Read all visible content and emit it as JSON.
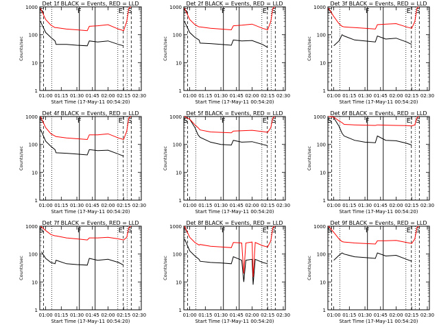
{
  "window": {
    "title": ""
  },
  "shared": {
    "xlabel": "Start Time (17-May-11 00:54:20)",
    "ylabel": "Counts/sec",
    "xticks": [
      "01:00",
      "01:15",
      "01:30",
      "01:45",
      "02:00",
      "02:15",
      "02:30"
    ],
    "yticks": [
      "1",
      "10",
      "100",
      "1000"
    ],
    "series_colors": {
      "events": "#000000",
      "lld": "#ff0000"
    },
    "markers": [
      {
        "label": "S",
        "t": "00:56"
      },
      {
        "label": "F",
        "t": "01:41"
      },
      {
        "label": "E",
        "t": "02:16"
      },
      {
        "label": "S",
        "t": "02:21"
      }
    ]
  },
  "chart_data": [
    {
      "type": "line",
      "title": "Det 1f BLACK = Events, RED = LLD",
      "xlim": [
        "00:54:20",
        "02:32"
      ],
      "ylim": [
        1,
        1000
      ],
      "yscale": "log",
      "series": [
        {
          "color": "#000000",
          "x": [
            "00:55",
            "01:00",
            "01:05",
            "01:09",
            "01:10",
            "01:20",
            "01:30",
            "01:40",
            "01:42",
            "01:50",
            "02:00",
            "02:10",
            "02:15"
          ],
          "y": [
            300,
            120,
            80,
            60,
            45,
            45,
            42,
            40,
            60,
            55,
            60,
            45,
            40
          ]
        },
        {
          "color": "#ff0000",
          "x": [
            "00:55",
            "01:00",
            "01:05",
            "01:09",
            "01:10",
            "01:20",
            "01:30",
            "01:40",
            "01:42",
            "01:50",
            "02:00",
            "02:10",
            "02:15",
            "02:18",
            "02:20",
            "02:22"
          ],
          "y": [
            900,
            350,
            220,
            180,
            180,
            160,
            150,
            140,
            200,
            210,
            230,
            160,
            140,
            300,
            900,
            1000
          ]
        }
      ]
    },
    {
      "type": "line",
      "title": "Det 2f BLACK = Events, RED = LLD",
      "xlim": [
        "00:54:20",
        "02:32"
      ],
      "ylim": [
        1,
        1000
      ],
      "yscale": "log",
      "series": [
        {
          "color": "#000000",
          "x": [
            "00:55",
            "01:00",
            "01:05",
            "01:09",
            "01:10",
            "01:20",
            "01:30",
            "01:40",
            "01:42",
            "01:50",
            "02:00",
            "02:10",
            "02:15"
          ],
          "y": [
            300,
            120,
            80,
            65,
            50,
            48,
            45,
            42,
            65,
            60,
            62,
            45,
            35
          ]
        },
        {
          "color": "#ff0000",
          "x": [
            "00:55",
            "01:00",
            "01:05",
            "01:09",
            "01:10",
            "01:20",
            "01:30",
            "01:40",
            "01:42",
            "01:50",
            "02:00",
            "02:10",
            "02:15",
            "02:18",
            "02:20",
            "02:22"
          ],
          "y": [
            900,
            350,
            230,
            190,
            190,
            170,
            160,
            150,
            210,
            220,
            240,
            170,
            150,
            300,
            900,
            1000
          ]
        }
      ]
    },
    {
      "type": "line",
      "title": "Det 3f BLACK = Events, RED = LLD",
      "xlim": [
        "00:54:20",
        "02:32"
      ],
      "ylim": [
        1,
        1000
      ],
      "yscale": "log",
      "series": [
        {
          "color": "#000000",
          "x": [
            "01:00",
            "01:05",
            "01:08",
            "01:10",
            "01:20",
            "01:30",
            "01:40",
            "01:42",
            "01:50",
            "02:00",
            "02:10",
            "02:15"
          ],
          "y": [
            40,
            60,
            100,
            90,
            65,
            60,
            55,
            90,
            70,
            75,
            55,
            45
          ]
        },
        {
          "color": "#ff0000",
          "x": [
            "00:55",
            "01:00",
            "01:05",
            "01:08",
            "01:10",
            "01:20",
            "01:30",
            "01:40",
            "01:42",
            "01:50",
            "02:00",
            "02:10",
            "02:15",
            "02:18",
            "02:20",
            "02:22"
          ],
          "y": [
            900,
            450,
            250,
            200,
            190,
            180,
            170,
            160,
            230,
            240,
            250,
            190,
            170,
            300,
            900,
            1000
          ]
        }
      ]
    },
    {
      "type": "line",
      "title": "Det 4f BLACK = Events, RED = LLD",
      "xlim": [
        "00:54:20",
        "02:32"
      ],
      "ylim": [
        1,
        1000
      ],
      "yscale": "log",
      "series": [
        {
          "color": "#000000",
          "x": [
            "00:55",
            "01:00",
            "01:05",
            "01:09",
            "01:10",
            "01:20",
            "01:30",
            "01:40",
            "01:42",
            "01:50",
            "02:00",
            "02:10",
            "02:15"
          ],
          "y": [
            350,
            130,
            85,
            65,
            50,
            48,
            45,
            42,
            65,
            60,
            62,
            45,
            38
          ]
        },
        {
          "color": "#ff0000",
          "x": [
            "00:55",
            "01:00",
            "01:05",
            "01:09",
            "01:10",
            "01:20",
            "01:30",
            "01:40",
            "01:42",
            "01:50",
            "02:00",
            "02:10",
            "02:15",
            "02:18",
            "02:20",
            "02:22"
          ],
          "y": [
            1000,
            400,
            240,
            200,
            190,
            170,
            160,
            150,
            220,
            220,
            240,
            170,
            150,
            300,
            900,
            1000
          ]
        }
      ]
    },
    {
      "type": "line",
      "title": "Det 5f BLACK = Events, RED = LLD",
      "xlim": [
        "00:54:20",
        "02:32"
      ],
      "ylim": [
        1,
        1000
      ],
      "yscale": "log",
      "series": [
        {
          "color": "#000000",
          "x": [
            "01:00",
            "01:05",
            "01:08",
            "01:10",
            "01:20",
            "01:30",
            "01:40",
            "01:42",
            "01:50",
            "02:00",
            "02:10",
            "02:15"
          ],
          "y": [
            800,
            400,
            220,
            180,
            120,
            100,
            95,
            140,
            120,
            125,
            100,
            90
          ]
        },
        {
          "color": "#ff0000",
          "x": [
            "00:55",
            "01:00",
            "01:05",
            "01:08",
            "01:10",
            "01:20",
            "01:30",
            "01:40",
            "01:42",
            "01:50",
            "02:00",
            "02:10",
            "02:15",
            "02:18",
            "02:20",
            "02:22"
          ],
          "y": [
            1000,
            800,
            500,
            400,
            330,
            280,
            270,
            260,
            300,
            310,
            320,
            290,
            270,
            400,
            900,
            1000
          ]
        }
      ]
    },
    {
      "type": "line",
      "title": "Det 6f BLACK = Events, RED = LLD",
      "xlim": [
        "00:54:20",
        "02:32"
      ],
      "ylim": [
        1,
        1000
      ],
      "yscale": "log",
      "series": [
        {
          "color": "#000000",
          "x": [
            "01:00",
            "01:05",
            "01:08",
            "01:10",
            "01:20",
            "01:30",
            "01:40",
            "01:42",
            "01:50",
            "02:00",
            "02:10",
            "02:15"
          ],
          "y": [
            900,
            450,
            250,
            200,
            140,
            120,
            115,
            200,
            140,
            135,
            110,
            95
          ]
        },
        {
          "color": "#ff0000",
          "x": [
            "00:55",
            "01:00",
            "01:05",
            "01:08",
            "01:10",
            "01:20",
            "01:30",
            "01:40",
            "01:42",
            "01:50",
            "02:00",
            "02:10",
            "02:15",
            "02:18",
            "02:20",
            "02:22"
          ],
          "y": [
            1000,
            950,
            700,
            600,
            520,
            500,
            490,
            480,
            500,
            490,
            480,
            470,
            460,
            500,
            900,
            1000
          ]
        }
      ]
    },
    {
      "type": "line",
      "title": "Det 7f BLACK = Events, RED = LLD",
      "xlim": [
        "00:54:20",
        "02:32"
      ],
      "ylim": [
        1,
        1000
      ],
      "yscale": "log",
      "series": [
        {
          "color": "#000000",
          "x": [
            "00:56",
            "01:00",
            "01:05",
            "01:09",
            "01:10",
            "01:20",
            "01:30",
            "01:40",
            "01:42",
            "01:50",
            "02:00",
            "02:10",
            "02:15"
          ],
          "y": [
            120,
            70,
            50,
            45,
            60,
            45,
            42,
            40,
            70,
            60,
            65,
            50,
            40
          ]
        },
        {
          "color": "#ff0000",
          "x": [
            "00:55",
            "01:00",
            "01:05",
            "01:09",
            "01:10",
            "01:20",
            "01:30",
            "01:40",
            "01:42",
            "01:50",
            "02:00",
            "02:10",
            "02:15",
            "02:18",
            "02:20",
            "02:22"
          ],
          "y": [
            1000,
            700,
            500,
            450,
            450,
            380,
            350,
            320,
            380,
            380,
            400,
            350,
            320,
            400,
            900,
            1000
          ]
        }
      ]
    },
    {
      "type": "line",
      "title": "Det 8f BLACK = Events, RED = LLD",
      "xlim": [
        "00:54:20",
        "02:32"
      ],
      "ylim": [
        1,
        1000
      ],
      "yscale": "log",
      "series": [
        {
          "color": "#000000",
          "x": [
            "00:55",
            "01:00",
            "01:05",
            "01:09",
            "01:10",
            "01:20",
            "01:30",
            "01:40",
            "01:42",
            "01:50",
            "01:52",
            "01:54",
            "02:00",
            "02:01",
            "02:03",
            "02:10",
            "02:15"
          ],
          "y": [
            350,
            130,
            85,
            65,
            55,
            50,
            48,
            45,
            80,
            60,
            10,
            60,
            65,
            8,
            65,
            50,
            45
          ]
        },
        {
          "color": "#ff0000",
          "x": [
            "00:55",
            "01:00",
            "01:05",
            "01:09",
            "01:10",
            "01:20",
            "01:30",
            "01:40",
            "01:42",
            "01:50",
            "01:52",
            "01:54",
            "02:00",
            "02:01",
            "02:03",
            "02:10",
            "02:15",
            "02:18",
            "02:20",
            "02:22"
          ],
          "y": [
            1000,
            400,
            260,
            210,
            220,
            190,
            180,
            170,
            260,
            250,
            20,
            250,
            270,
            15,
            260,
            200,
            180,
            300,
            900,
            1000
          ]
        }
      ]
    },
    {
      "type": "line",
      "title": "Det 9f BLACK = Events, RED = LLD",
      "xlim": [
        "00:54:20",
        "02:32"
      ],
      "ylim": [
        1,
        1000
      ],
      "yscale": "log",
      "series": [
        {
          "color": "#000000",
          "x": [
            "01:00",
            "01:05",
            "01:08",
            "01:10",
            "01:20",
            "01:30",
            "01:40",
            "01:42",
            "01:50",
            "02:00",
            "02:10",
            "02:15"
          ],
          "y": [
            60,
            90,
            110,
            100,
            80,
            75,
            70,
            110,
            85,
            90,
            65,
            55
          ]
        },
        {
          "color": "#ff0000",
          "x": [
            "00:55",
            "01:00",
            "01:05",
            "01:08",
            "01:10",
            "01:20",
            "01:30",
            "01:40",
            "01:42",
            "01:50",
            "02:00",
            "02:10",
            "02:15",
            "02:18",
            "02:20",
            "02:22"
          ],
          "y": [
            1000,
            600,
            350,
            280,
            270,
            250,
            240,
            230,
            300,
            300,
            310,
            260,
            240,
            350,
            900,
            1000
          ]
        }
      ]
    }
  ]
}
